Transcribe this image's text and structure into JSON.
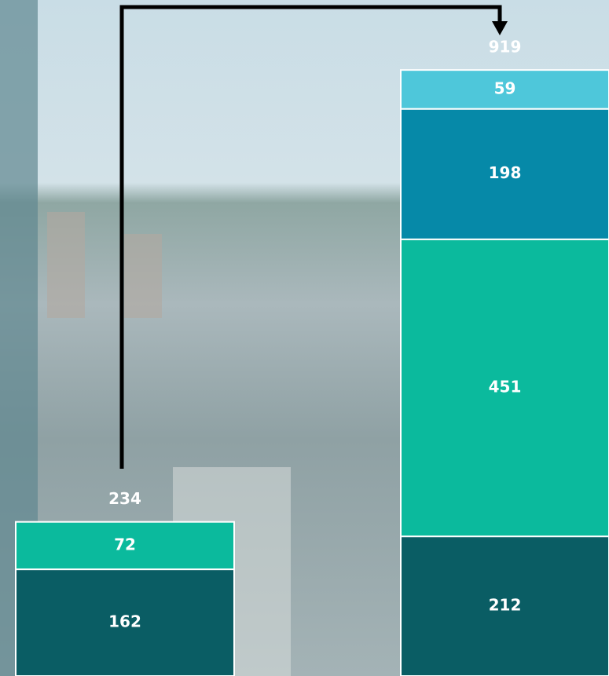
{
  "chart_data": {
    "type": "stacked-bar",
    "categories": [
      null,
      null
    ],
    "series": [
      {
        "color": "#0a5d64",
        "values": [
          162,
          212
        ]
      },
      {
        "color": "#0bba9d",
        "values": [
          72,
          451
        ]
      },
      {
        "color": "#0689a8",
        "values": [
          null,
          198
        ]
      },
      {
        "color": "#4ec7da",
        "values": [
          null,
          59
        ]
      }
    ],
    "totals": [
      234,
      919
    ]
  }
}
